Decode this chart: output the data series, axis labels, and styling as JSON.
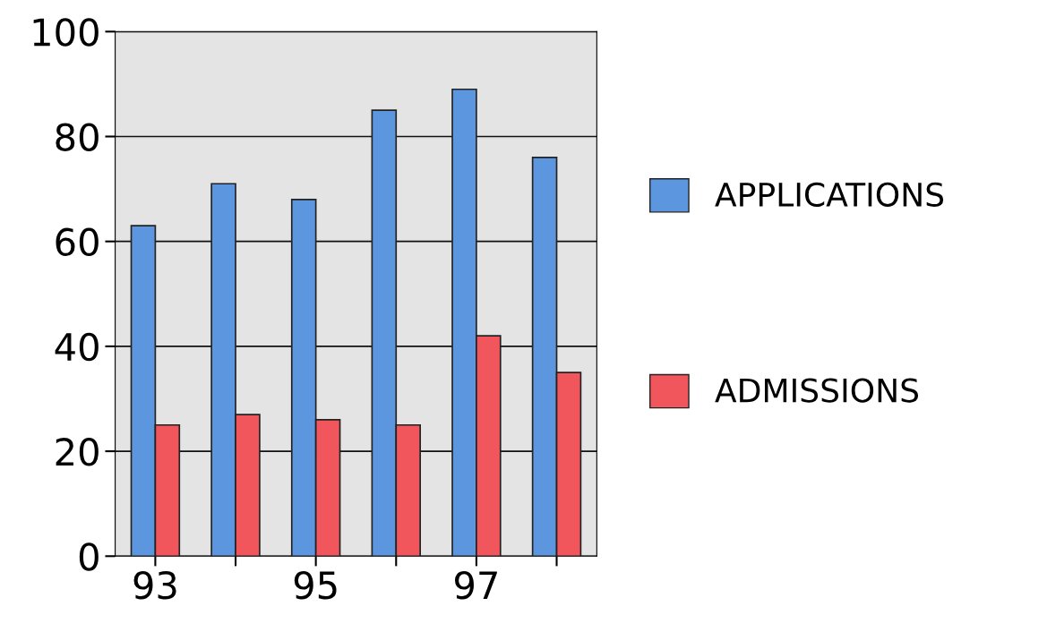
{
  "chart_data": {
    "type": "bar",
    "categories": [
      "93",
      null,
      "95",
      null,
      "97",
      null
    ],
    "series": [
      {
        "name": "APPLICATIONS",
        "color": "#5b96de",
        "values": [
          63,
          71,
          68,
          85,
          89,
          76
        ]
      },
      {
        "name": "ADMISSIONS",
        "color": "#f0565c",
        "values": [
          25,
          27,
          26,
          25,
          42,
          35
        ]
      }
    ],
    "ylim": [
      0,
      100
    ],
    "yticks": [
      0,
      20,
      40,
      60,
      80,
      100
    ],
    "grid": "y",
    "legend": "right"
  }
}
